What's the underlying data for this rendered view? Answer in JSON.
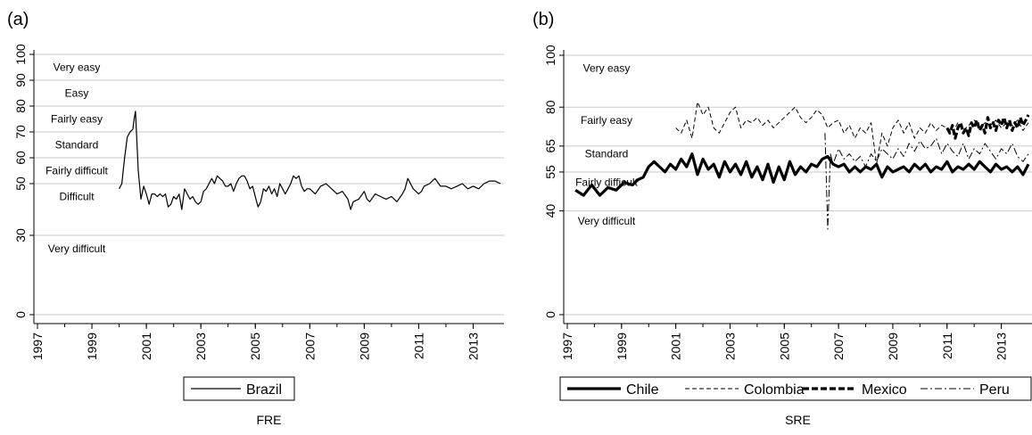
{
  "chart_data": [
    {
      "panel_label": "(a)",
      "type": "line",
      "xlabel": "FRE",
      "ylabel": "",
      "xlim": [
        1997,
        2014
      ],
      "ylim": [
        0,
        100
      ],
      "y_ticks": [
        0,
        30,
        50,
        60,
        70,
        80,
        90,
        100
      ],
      "x_ticks": [
        "1997",
        "1999",
        "2001",
        "2003",
        "2005",
        "2007",
        "2009",
        "2011",
        "2013"
      ],
      "grid": true,
      "legend": "bottom",
      "bands": [
        {
          "label": "Very easy",
          "y": 95
        },
        {
          "label": "Easy",
          "y": 85
        },
        {
          "label": "Fairly easy",
          "y": 75
        },
        {
          "label": "Standard",
          "y": 65
        },
        {
          "label": "Fairly difficult",
          "y": 55
        },
        {
          "label": "Difficult",
          "y": 45
        },
        {
          "label": "Very difficult",
          "y": 25
        }
      ],
      "series": [
        {
          "name": "Brazil",
          "style": "solid",
          "x": [
            2000.0,
            2000.1,
            2000.2,
            2000.3,
            2000.4,
            2000.5,
            2000.55,
            2000.6,
            2000.7,
            2000.8,
            2000.9,
            2001.0,
            2001.1,
            2001.2,
            2001.3,
            2001.4,
            2001.5,
            2001.6,
            2001.7,
            2001.8,
            2001.9,
            2002.0,
            2002.1,
            2002.2,
            2002.3,
            2002.4,
            2002.5,
            2002.6,
            2002.7,
            2002.8,
            2002.9,
            2003.0,
            2003.1,
            2003.2,
            2003.3,
            2003.4,
            2003.5,
            2003.6,
            2003.7,
            2003.8,
            2003.9,
            2004.0,
            2004.1,
            2004.2,
            2004.3,
            2004.4,
            2004.5,
            2004.6,
            2004.7,
            2004.8,
            2004.9,
            2005.0,
            2005.1,
            2005.2,
            2005.3,
            2005.4,
            2005.5,
            2005.6,
            2005.7,
            2005.8,
            2005.9,
            2006.0,
            2006.1,
            2006.2,
            2006.3,
            2006.4,
            2006.5,
            2006.6,
            2006.7,
            2006.8,
            2006.9,
            2007.0,
            2007.2,
            2007.4,
            2007.6,
            2007.8,
            2008.0,
            2008.2,
            2008.4,
            2008.5,
            2008.6,
            2008.8,
            2009.0,
            2009.1,
            2009.2,
            2009.4,
            2009.6,
            2009.8,
            2010.0,
            2010.2,
            2010.4,
            2010.5,
            2010.6,
            2010.8,
            2011.0,
            2011.1,
            2011.2,
            2011.4,
            2011.6,
            2011.8,
            2012.0,
            2012.2,
            2012.4,
            2012.6,
            2012.8,
            2013.0,
            2013.2,
            2013.4,
            2013.6,
            2013.8,
            2014.0
          ],
          "y": [
            48,
            50,
            60,
            68,
            70,
            71,
            75,
            78,
            55,
            44,
            49,
            46,
            42,
            46,
            46,
            45,
            46,
            45,
            46,
            41,
            42,
            45,
            44,
            46,
            40,
            48,
            46,
            44,
            45,
            43,
            42,
            43,
            47,
            48,
            50,
            52,
            50,
            53,
            52,
            51,
            49,
            49,
            50,
            47,
            50,
            52,
            53,
            53,
            51,
            48,
            49,
            45,
            41,
            43,
            48,
            47,
            49,
            46,
            48,
            45,
            50,
            48,
            46,
            48,
            50,
            53,
            52,
            53,
            49,
            47,
            48,
            48,
            46,
            49,
            50,
            48,
            46,
            47,
            44,
            40,
            43,
            44,
            47,
            44,
            43,
            46,
            45,
            44,
            45,
            43,
            46,
            48,
            52,
            48,
            46,
            47,
            49,
            50,
            52,
            49,
            49,
            48,
            49,
            50,
            48,
            49,
            48,
            50,
            51,
            51,
            50
          ]
        }
      ]
    },
    {
      "panel_label": "(b)",
      "type": "line",
      "xlabel": "SRE",
      "ylabel": "",
      "xlim": [
        1997,
        2014
      ],
      "ylim": [
        0,
        100
      ],
      "y_ticks": [
        0,
        40,
        55,
        65,
        80,
        100
      ],
      "x_ticks": [
        "1997",
        "1999",
        "2001",
        "2003",
        "2005",
        "2007",
        "2009",
        "2011",
        "2013"
      ],
      "grid": true,
      "legend": "bottom",
      "bands": [
        {
          "label": "Very easy",
          "y": 95
        },
        {
          "label": "Fairly easy",
          "y": 75
        },
        {
          "label": "Standard",
          "y": 62
        },
        {
          "label": "Fairly difficult",
          "y": 51
        },
        {
          "label": "Very difficult",
          "y": 36
        }
      ],
      "series": [
        {
          "name": "Chile",
          "style": "thick",
          "x": [
            1997.3,
            1997.6,
            1997.9,
            1998.2,
            1998.5,
            1998.8,
            1999.1,
            1999.4,
            1999.6,
            1999.8,
            2000.0,
            2000.2,
            2000.4,
            2000.6,
            2000.8,
            2001.0,
            2001.2,
            2001.4,
            2001.6,
            2001.8,
            2002.0,
            2002.2,
            2002.4,
            2002.6,
            2002.8,
            2003.0,
            2003.2,
            2003.4,
            2003.6,
            2003.8,
            2004.0,
            2004.2,
            2004.4,
            2004.6,
            2004.8,
            2005.0,
            2005.2,
            2005.4,
            2005.6,
            2005.8,
            2006.0,
            2006.2,
            2006.4,
            2006.6,
            2006.8,
            2007.0,
            2007.2,
            2007.4,
            2007.6,
            2007.8,
            2008.0,
            2008.2,
            2008.4,
            2008.6,
            2008.8,
            2009.0,
            2009.2,
            2009.4,
            2009.6,
            2009.8,
            2010.0,
            2010.2,
            2010.4,
            2010.6,
            2010.8,
            2011.0,
            2011.2,
            2011.4,
            2011.6,
            2011.8,
            2012.0,
            2012.2,
            2012.4,
            2012.6,
            2012.8,
            2013.0,
            2013.2,
            2013.4,
            2013.6,
            2013.8,
            2014.0
          ],
          "y": [
            48,
            46,
            50,
            46,
            49,
            48,
            51,
            50,
            52,
            53,
            57,
            59,
            57,
            55,
            58,
            56,
            60,
            57,
            62,
            54,
            60,
            56,
            58,
            53,
            59,
            55,
            58,
            54,
            59,
            53,
            57,
            52,
            58,
            51,
            57,
            52,
            59,
            54,
            57,
            55,
            58,
            57,
            60,
            61,
            58,
            57,
            58,
            55,
            57,
            55,
            57,
            56,
            58,
            53,
            57,
            55,
            56,
            57,
            55,
            58,
            56,
            58,
            55,
            57,
            56,
            59,
            55,
            57,
            56,
            58,
            56,
            59,
            57,
            55,
            58,
            56,
            57,
            55,
            57,
            54,
            58
          ]
        },
        {
          "name": "Colombia",
          "style": "dash",
          "x": [
            2001.0,
            2001.2,
            2001.4,
            2001.6,
            2001.8,
            2002.0,
            2002.2,
            2002.4,
            2002.6,
            2002.8,
            2003.0,
            2003.2,
            2003.4,
            2003.6,
            2003.8,
            2004.0,
            2004.2,
            2004.4,
            2004.6,
            2004.8,
            2005.0,
            2005.2,
            2005.4,
            2005.6,
            2005.8,
            2006.0,
            2006.2,
            2006.4,
            2006.6,
            2006.8,
            2007.0,
            2007.2,
            2007.4,
            2007.6,
            2007.8,
            2008.0,
            2008.2,
            2008.4,
            2008.6,
            2008.8,
            2009.0,
            2009.2,
            2009.4,
            2009.6,
            2009.8,
            2010.0,
            2010.2,
            2010.4,
            2010.6,
            2010.8,
            2011.0,
            2011.2,
            2011.4,
            2011.6,
            2011.8,
            2012.0,
            2012.2,
            2012.4,
            2012.6,
            2012.8,
            2013.0,
            2013.2,
            2013.4,
            2013.6,
            2013.8,
            2014.0
          ],
          "y": [
            72,
            70,
            75,
            68,
            82,
            77,
            80,
            72,
            70,
            74,
            78,
            80,
            72,
            75,
            74,
            76,
            73,
            75,
            72,
            74,
            76,
            78,
            80,
            76,
            74,
            76,
            79,
            77,
            72,
            74,
            75,
            70,
            73,
            68,
            72,
            70,
            74,
            58,
            70,
            65,
            72,
            75,
            70,
            74,
            68,
            72,
            70,
            74,
            71,
            73,
            72,
            70,
            74,
            71,
            73,
            75,
            72,
            74,
            73,
            75,
            72,
            74,
            73,
            75,
            71,
            74
          ]
        },
        {
          "name": "Mexico",
          "style": "thickdash",
          "x": [
            2011.0,
            2011.1,
            2011.2,
            2011.3,
            2011.4,
            2011.5,
            2011.6,
            2011.7,
            2011.8,
            2011.9,
            2012.0,
            2012.1,
            2012.2,
            2012.3,
            2012.4,
            2012.5,
            2012.6,
            2012.7,
            2012.8,
            2012.9,
            2013.0,
            2013.1,
            2013.2,
            2013.3,
            2013.4,
            2013.5,
            2013.6,
            2013.7,
            2013.8,
            2013.9,
            2014.0
          ],
          "y": [
            72,
            70,
            73,
            68,
            72,
            74,
            70,
            72,
            69,
            74,
            72,
            75,
            71,
            73,
            70,
            76,
            72,
            74,
            71,
            75,
            73,
            76,
            72,
            75,
            71,
            74,
            72,
            76,
            73,
            75,
            77
          ]
        },
        {
          "name": "Peru",
          "style": "dashdot",
          "x": [
            2006.5,
            2006.6,
            2006.7,
            2006.8,
            2007.0,
            2007.2,
            2007.4,
            2007.6,
            2007.8,
            2008.0,
            2008.2,
            2008.4,
            2008.6,
            2008.8,
            2009.0,
            2009.2,
            2009.4,
            2009.6,
            2009.8,
            2010.0,
            2010.2,
            2010.4,
            2010.6,
            2010.8,
            2011.0,
            2011.2,
            2011.4,
            2011.6,
            2011.8,
            2012.0,
            2012.2,
            2012.4,
            2012.6,
            2012.8,
            2013.0,
            2013.2,
            2013.4,
            2013.6,
            2013.8,
            2014.0
          ],
          "y": [
            70,
            33,
            62,
            58,
            64,
            60,
            62,
            59,
            61,
            57,
            62,
            59,
            64,
            62,
            60,
            64,
            61,
            66,
            63,
            67,
            64,
            65,
            68,
            62,
            66,
            63,
            61,
            66,
            60,
            64,
            62,
            66,
            63,
            60,
            64,
            62,
            66,
            61,
            59,
            62
          ]
        }
      ]
    }
  ]
}
